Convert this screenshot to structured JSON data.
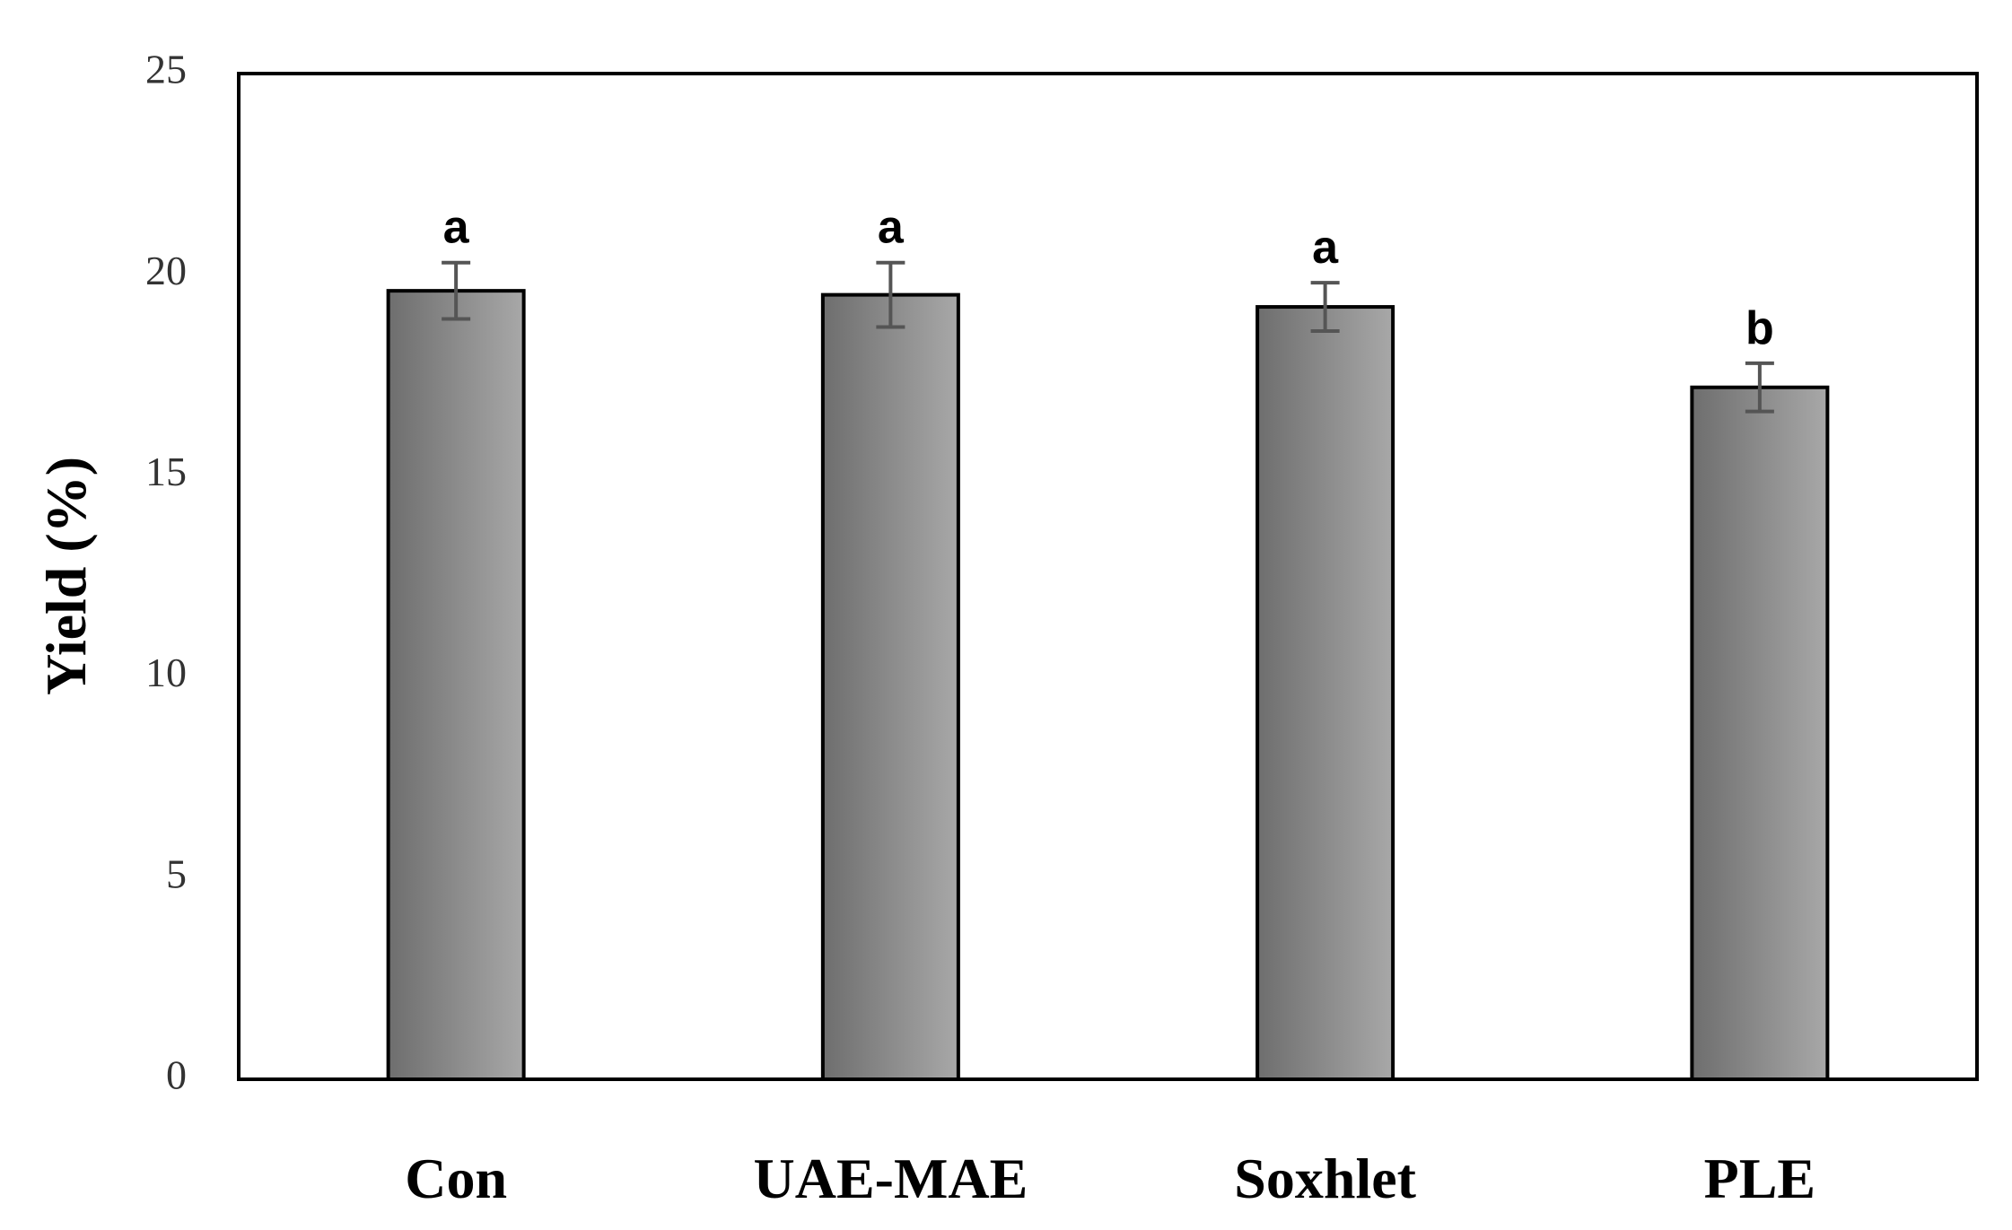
{
  "chart_data": {
    "type": "bar",
    "y_label": "Yield (%)",
    "categories": [
      "Con",
      "UAE-MAE",
      "Soxhlet",
      "PLE"
    ],
    "values": [
      19.6,
      19.5,
      19.2,
      17.2
    ],
    "errors": [
      0.7,
      0.8,
      0.6,
      0.6
    ],
    "letters": [
      "a",
      "a",
      "a",
      "b"
    ],
    "color": "#8a8a8a",
    "ylim": [
      0,
      25
    ],
    "yticks": [
      0,
      5,
      10,
      15,
      20,
      25
    ],
    "grid": false
  }
}
